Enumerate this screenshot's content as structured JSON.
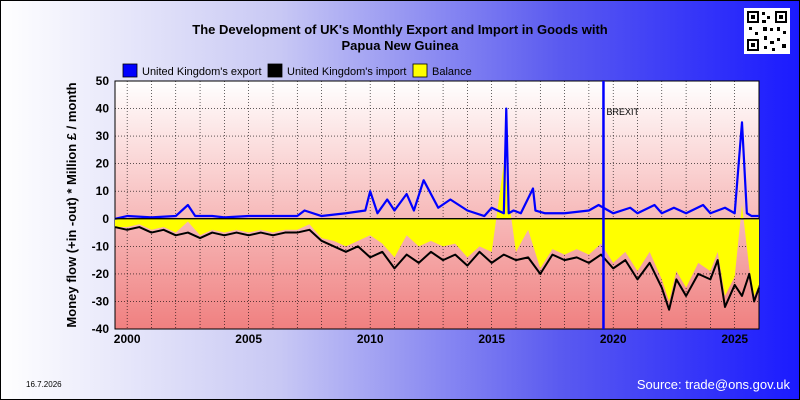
{
  "header": {
    "title_line1": "The Development of UK's Monthly Export and Import in Goods with",
    "title_line2": "Papua New Guinea"
  },
  "footer": {
    "date": "16.7.2026",
    "source": "Source: trade@ons.gov.uk"
  },
  "colors": {
    "export": "#0000ff",
    "import": "#000000",
    "balance": "#ffff00",
    "brexit_line": "#0000ff"
  },
  "chart_data": {
    "type": "line",
    "ylabel": "Money flow (+in -out) * Million £ / month",
    "ylim": [
      -40,
      50
    ],
    "xlim": [
      1999.5,
      2026.0
    ],
    "yticks": [
      -40,
      -30,
      -20,
      -10,
      0,
      10,
      20,
      30,
      40,
      50
    ],
    "xticks": [
      2000,
      2005,
      2010,
      2015,
      2020,
      2025
    ],
    "grid": true,
    "legend_position": "top",
    "legend": [
      "United Kingdom's export",
      "United Kingdom's import",
      "Balance"
    ],
    "annotations": [
      {
        "label": "BREXIT",
        "x": 2019.6
      }
    ],
    "series": [
      {
        "name": "United Kingdom's export",
        "x": [
          1999.5,
          2000.0,
          2001.0,
          2002.0,
          2002.5,
          2002.8,
          2003.5,
          2004.0,
          2005.0,
          2006.0,
          2007.0,
          2007.3,
          2008.0,
          2009.0,
          2009.8,
          2010.0,
          2010.3,
          2010.7,
          2011.0,
          2011.5,
          2011.8,
          2012.2,
          2012.8,
          2013.3,
          2014.0,
          2014.7,
          2015.0,
          2015.5,
          2015.6,
          2015.7,
          2015.9,
          2016.2,
          2016.7,
          2016.8,
          2017.2,
          2018.0,
          2019.0,
          2019.4,
          2020.0,
          2020.7,
          2021.0,
          2021.7,
          2022.0,
          2022.5,
          2023.0,
          2023.7,
          2024.0,
          2024.6,
          2025.0,
          2025.3,
          2025.5,
          2025.7,
          2026.0
        ],
        "values": [
          0,
          1,
          0.5,
          1,
          5,
          1,
          1,
          0.5,
          1,
          1,
          1,
          3,
          1,
          2,
          3,
          10,
          2,
          7,
          3,
          9,
          3,
          14,
          4,
          7,
          3,
          1,
          4,
          2,
          40,
          2,
          3,
          2,
          11,
          3,
          2,
          2,
          3,
          5,
          2,
          4,
          2,
          5,
          2,
          4,
          2,
          5,
          2,
          4,
          2,
          35,
          2,
          1,
          1
        ]
      },
      {
        "name": "United Kingdom's import",
        "x": [
          1999.5,
          2000.0,
          2000.5,
          2001.0,
          2001.5,
          2002.0,
          2002.5,
          2003.0,
          2003.5,
          2004.0,
          2004.5,
          2005.0,
          2005.5,
          2006.0,
          2006.5,
          2007.0,
          2007.5,
          2008.0,
          2008.5,
          2009.0,
          2009.5,
          2010.0,
          2010.5,
          2011.0,
          2011.5,
          2012.0,
          2012.5,
          2013.0,
          2013.5,
          2014.0,
          2014.5,
          2015.0,
          2015.5,
          2016.0,
          2016.5,
          2017.0,
          2017.5,
          2018.0,
          2018.5,
          2019.0,
          2019.5,
          2020.0,
          2020.5,
          2021.0,
          2021.5,
          2022.0,
          2022.3,
          2022.6,
          2023.0,
          2023.5,
          2024.0,
          2024.3,
          2024.6,
          2025.0,
          2025.3,
          2025.6,
          2025.8,
          2026.0
        ],
        "values": [
          -3,
          -4,
          -3,
          -5,
          -4,
          -6,
          -5,
          -7,
          -5,
          -6,
          -5,
          -6,
          -5,
          -6,
          -5,
          -5,
          -4,
          -8,
          -10,
          -12,
          -10,
          -14,
          -12,
          -18,
          -13,
          -16,
          -12,
          -15,
          -13,
          -17,
          -12,
          -16,
          -13,
          -15,
          -14,
          -20,
          -13,
          -15,
          -14,
          -16,
          -13,
          -18,
          -15,
          -22,
          -16,
          -25,
          -33,
          -22,
          -28,
          -20,
          -22,
          -15,
          -32,
          -24,
          -28,
          -20,
          -30,
          -25
        ]
      },
      {
        "name": "Balance",
        "x": [
          1999.5,
          2000.0,
          2000.5,
          2001.0,
          2001.5,
          2002.0,
          2002.5,
          2003.0,
          2003.5,
          2004.0,
          2004.5,
          2005.0,
          2005.5,
          2006.0,
          2006.5,
          2007.0,
          2007.5,
          2008.0,
          2008.5,
          2009.0,
          2009.5,
          2010.0,
          2010.5,
          2011.0,
          2011.5,
          2012.0,
          2012.5,
          2013.0,
          2013.5,
          2014.0,
          2014.5,
          2015.0,
          2015.5,
          2016.0,
          2016.5,
          2017.0,
          2017.5,
          2018.0,
          2018.5,
          2019.0,
          2019.5,
          2020.0,
          2020.5,
          2021.0,
          2021.5,
          2022.0,
          2022.3,
          2022.6,
          2023.0,
          2023.5,
          2024.0,
          2024.3,
          2024.6,
          2025.0,
          2025.3,
          2025.6,
          2025.8,
          2026.0
        ],
        "values": [
          -3,
          -3,
          -2,
          -4,
          -3,
          -5,
          -1,
          -6,
          -4,
          -5,
          -4,
          -5,
          -4,
          -5,
          -4,
          -4,
          -2,
          -7,
          -8,
          -10,
          -8,
          -6,
          -9,
          -14,
          -6,
          -10,
          -8,
          -10,
          -9,
          -14,
          -10,
          -12,
          20,
          -12,
          -4,
          -18,
          -11,
          -13,
          -11,
          -13,
          -9,
          -16,
          -12,
          -19,
          -12,
          -22,
          -30,
          -19,
          -25,
          -16,
          -19,
          -12,
          -28,
          -21,
          5,
          -18,
          -28,
          -24
        ]
      }
    ]
  }
}
